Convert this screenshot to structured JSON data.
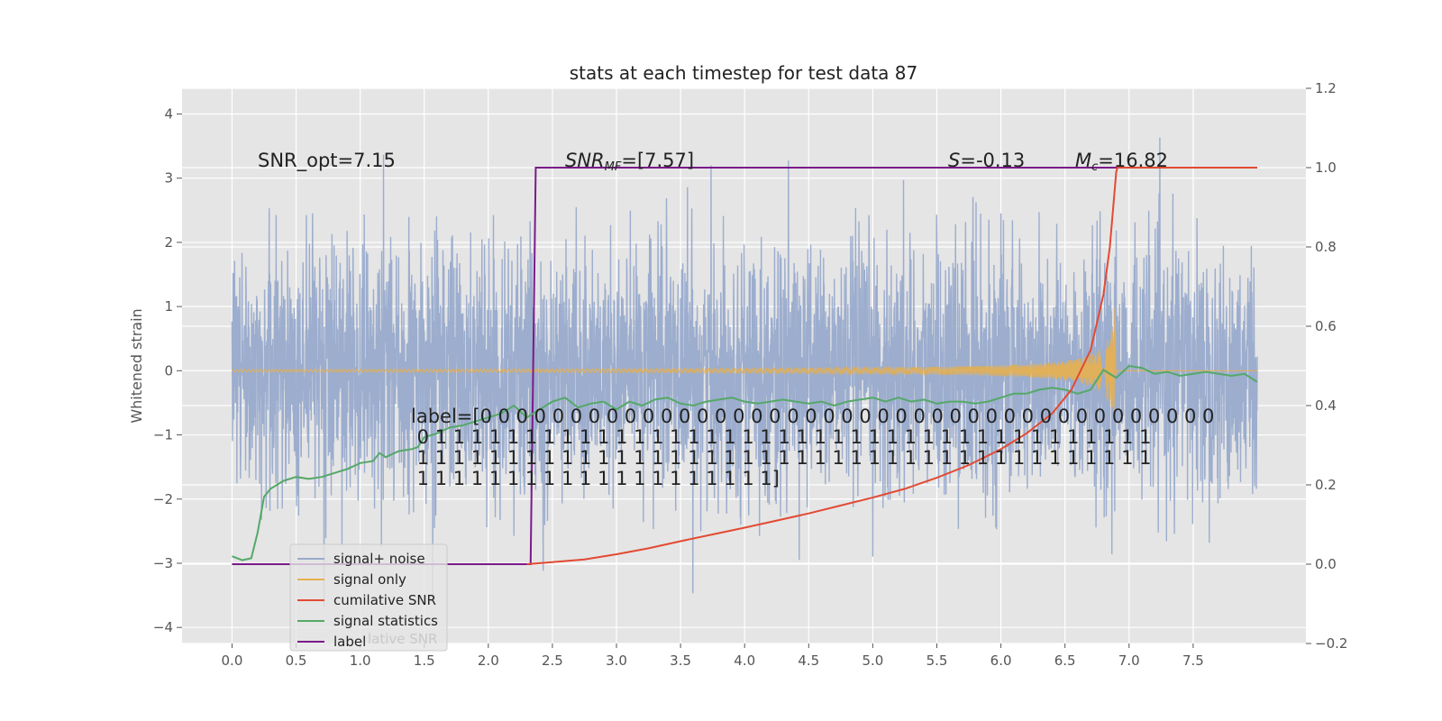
{
  "chart_data": {
    "type": "line",
    "title": "stats at each timestep for test data 87",
    "xlabel": "",
    "ylabel": "Whitened strain",
    "y2label": "",
    "xlim": [
      -0.39,
      8.38
    ],
    "ylim": [
      -4.25,
      4.4
    ],
    "y2lim": [
      -0.2,
      1.2
    ],
    "x_ticks": [
      "0.0",
      "0.5",
      "1.0",
      "1.5",
      "2.0",
      "2.5",
      "3.0",
      "3.5",
      "4.0",
      "4.5",
      "5.0",
      "5.5",
      "6.0",
      "6.5",
      "7.0",
      "7.5"
    ],
    "y_ticks": [
      "4",
      "3",
      "2",
      "1",
      "0",
      "−1",
      "−2",
      "−3",
      "−4"
    ],
    "y2_ticks": [
      "1.2",
      "1.0",
      "0.8",
      "0.6",
      "0.4",
      "0.2",
      "0.0",
      "−0.2"
    ],
    "grid": true,
    "legend_placement": "lower-left",
    "annotations": {
      "snr_opt": "SNR_opt=7.15",
      "snr_mf_sym": "SNR",
      "snr_mf_sub": "MF",
      "snr_mf_val": "=[7.57]",
      "spin_sym": "S",
      "spin_val": "=-0.13",
      "mc_sym": "M",
      "mc_sub": "c",
      "mc_val": "=16.82",
      "label_lines": [
        "label=[0 0 0 0 0 0 0 0 0 0 0 0 0 0 0 0 0 0 0 0 0 0 0 0 0 0 0 0 0 0 0 0 0 0 0 0 0 0 0 0 0",
        " 0 1 1 1 1 1 1 1 1 1 1 1 1 1 1 1 1 1 1 1 1 1 1 1 1 1 1 1 1 1 1 1 1 1 1 1 1 1 1 1 1",
        " 1 1 1 1 1 1 1 1 1 1 1 1 1 1 1 1 1 1 1 1 1 1 1 1 1 1 1 1 1 1 1 1 1 1 1 1 1 1 1 1 1",
        " 1 1 1 1 1 1 1 1 1 1 1 1 1 1 1 1 1 1 1 1]"
      ],
      "legend_overlap_ghost": "lative SNR"
    },
    "series": [
      {
        "name": "signal+ noise",
        "color": "#98aacc",
        "axis": "left",
        "x_range": [
          0.0,
          8.0
        ],
        "std": 0.95
      },
      {
        "name": "signal only",
        "color": "#e8b04e",
        "axis": "left",
        "x_range": [
          0.0,
          8.0
        ],
        "merger_x": 6.9,
        "peak_amplitude": 1.3
      },
      {
        "name": "cumilative SNR",
        "color": "#e24a33",
        "axis": "right",
        "x": [
          2.3,
          2.5,
          2.75,
          3.0,
          3.25,
          3.5,
          3.75,
          4.0,
          4.25,
          4.5,
          4.75,
          5.0,
          5.25,
          5.5,
          5.75,
          6.0,
          6.2,
          6.4,
          6.55,
          6.7,
          6.8,
          6.85,
          6.9,
          6.91,
          8.0
        ],
        "values": [
          0.0,
          0.005,
          0.012,
          0.025,
          0.04,
          0.058,
          0.075,
          0.092,
          0.11,
          0.128,
          0.148,
          0.168,
          0.19,
          0.218,
          0.25,
          0.29,
          0.33,
          0.38,
          0.44,
          0.54,
          0.68,
          0.8,
          0.99,
          1.0,
          1.0
        ]
      },
      {
        "name": "signal statistics",
        "color": "#55a868",
        "axis": "right",
        "x": [
          0.0,
          0.08,
          0.15,
          0.2,
          0.25,
          0.3,
          0.4,
          0.5,
          0.6,
          0.7,
          0.8,
          0.9,
          1.0,
          1.1,
          1.15,
          1.2,
          1.3,
          1.4,
          1.45,
          1.5,
          1.6,
          1.7,
          1.8,
          1.9,
          2.0,
          2.1,
          2.2,
          2.3,
          2.4,
          2.5,
          2.6,
          2.7,
          2.8,
          2.9,
          3.0,
          3.1,
          3.2,
          3.3,
          3.4,
          3.5,
          3.6,
          3.7,
          3.8,
          3.9,
          4.0,
          4.1,
          4.2,
          4.3,
          4.4,
          4.5,
          4.6,
          4.7,
          4.8,
          4.9,
          5.0,
          5.1,
          5.2,
          5.3,
          5.4,
          5.5,
          5.6,
          5.7,
          5.8,
          5.9,
          6.0,
          6.1,
          6.2,
          6.3,
          6.4,
          6.5,
          6.6,
          6.7,
          6.8,
          6.9,
          7.0,
          7.1,
          7.2,
          7.3,
          7.4,
          7.5,
          7.6,
          7.7,
          7.8,
          7.9,
          8.0
        ],
        "values": [
          0.02,
          0.01,
          0.015,
          0.08,
          0.17,
          0.19,
          0.21,
          0.22,
          0.215,
          0.22,
          0.23,
          0.24,
          0.255,
          0.26,
          0.28,
          0.27,
          0.285,
          0.29,
          0.295,
          0.32,
          0.33,
          0.345,
          0.35,
          0.36,
          0.37,
          0.38,
          0.4,
          0.37,
          0.39,
          0.41,
          0.42,
          0.395,
          0.405,
          0.41,
          0.39,
          0.41,
          0.4,
          0.415,
          0.42,
          0.405,
          0.4,
          0.41,
          0.415,
          0.42,
          0.41,
          0.405,
          0.41,
          0.415,
          0.41,
          0.405,
          0.41,
          0.4,
          0.41,
          0.415,
          0.42,
          0.41,
          0.42,
          0.41,
          0.415,
          0.405,
          0.41,
          0.41,
          0.405,
          0.41,
          0.42,
          0.43,
          0.43,
          0.44,
          0.445,
          0.44,
          0.43,
          0.44,
          0.49,
          0.47,
          0.5,
          0.495,
          0.48,
          0.485,
          0.475,
          0.48,
          0.485,
          0.48,
          0.475,
          0.48,
          0.46
        ]
      },
      {
        "name": "label",
        "color": "#7b1a8a",
        "axis": "right",
        "x": [
          0.0,
          2.33,
          2.37,
          8.0
        ],
        "values": [
          0.0,
          0.0,
          1.0,
          1.0
        ]
      }
    ]
  }
}
